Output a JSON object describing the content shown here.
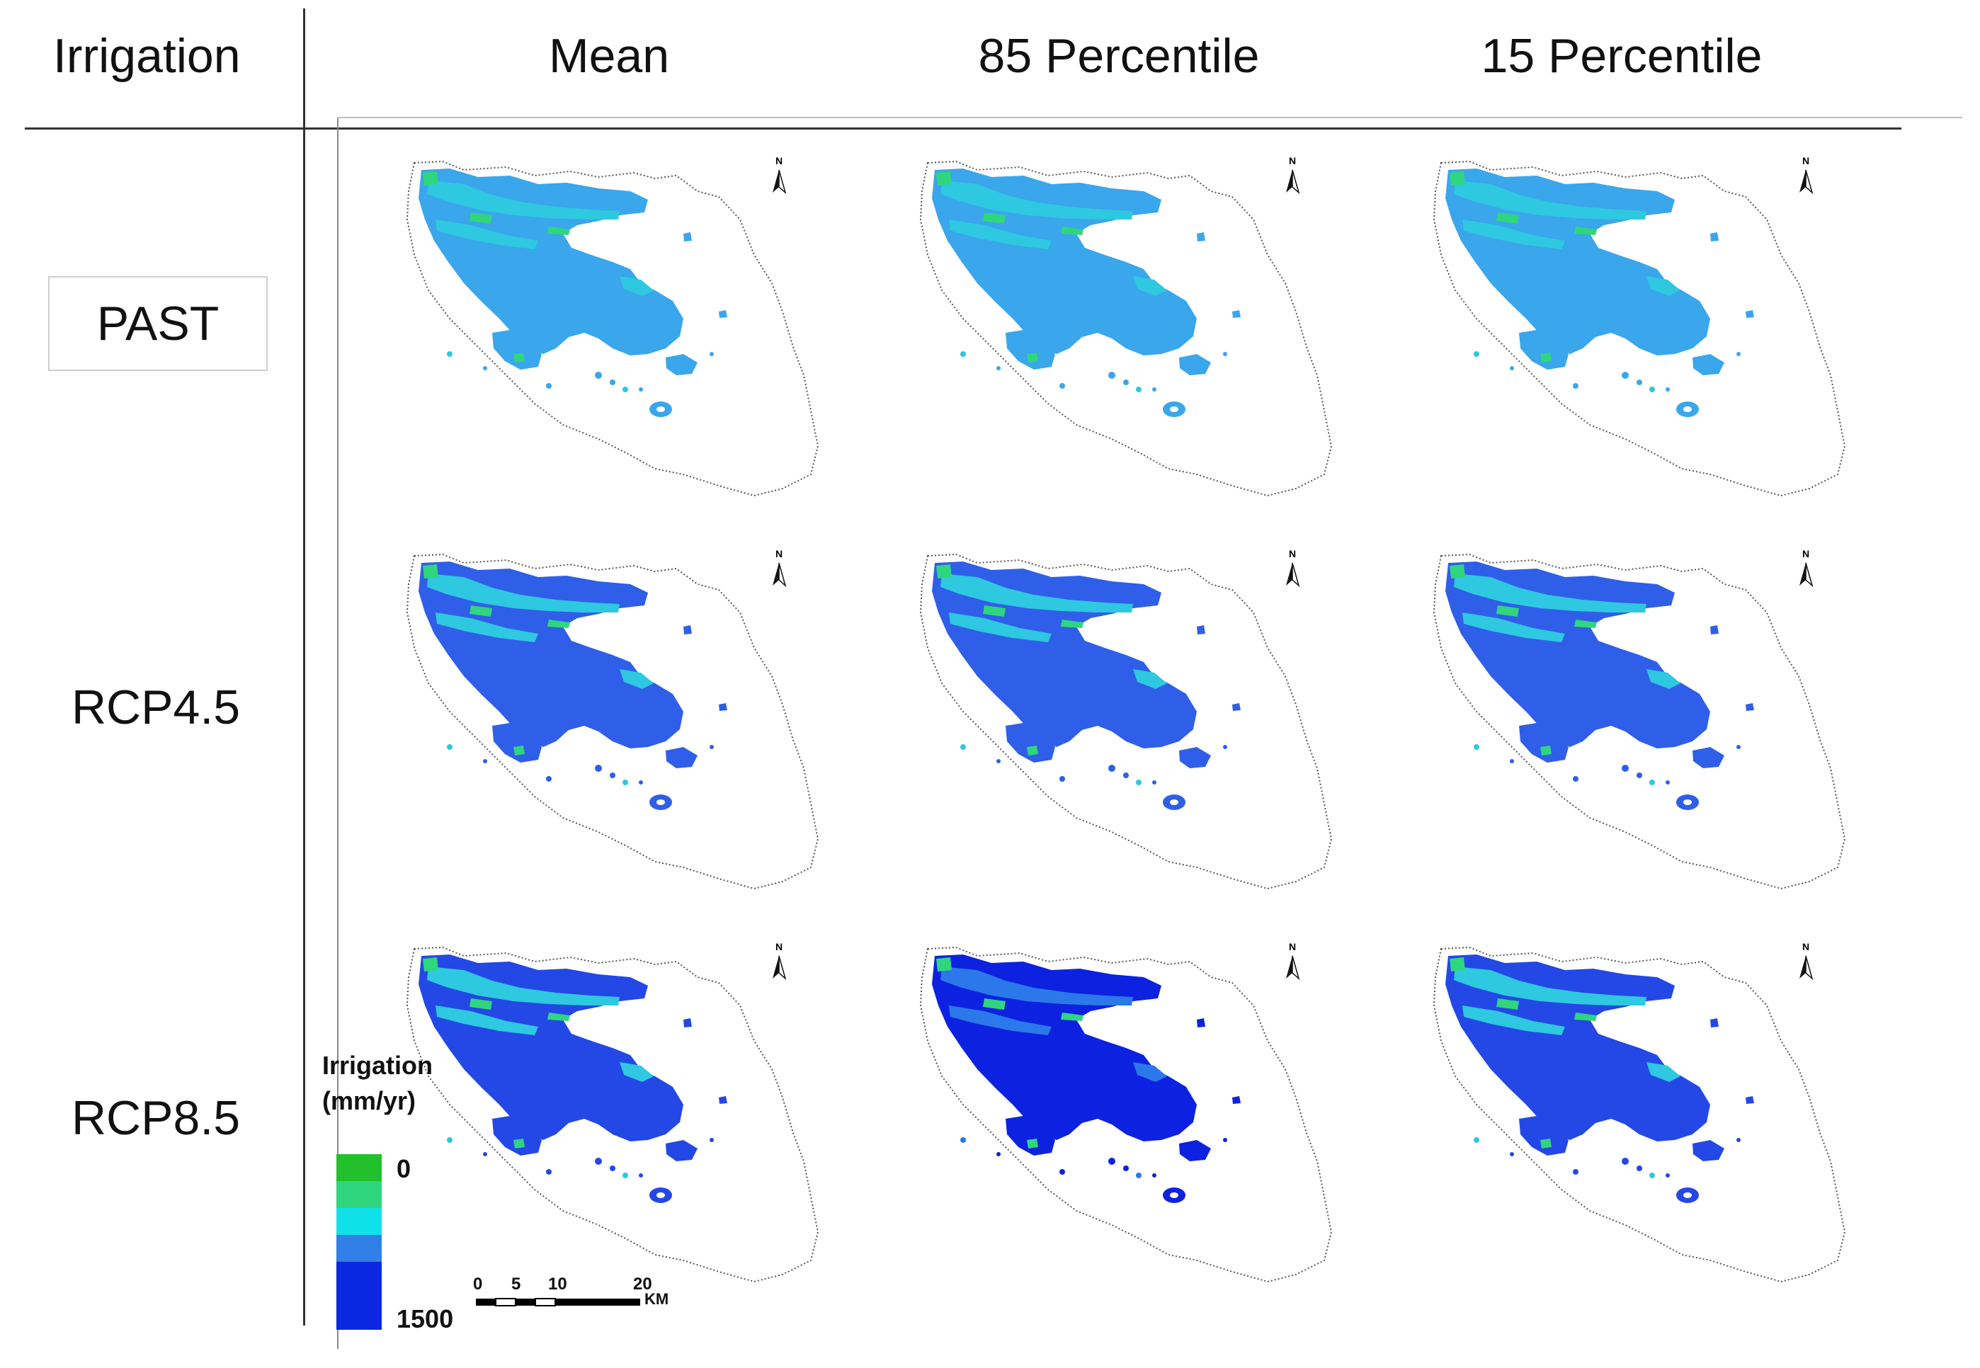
{
  "header": {
    "corner": "Irrigation",
    "columns": [
      "Mean",
      "85 Percentile",
      "15 Percentile"
    ]
  },
  "rows": [
    "PAST",
    "RCP4.5",
    "RCP8.5"
  ],
  "north_label": "N",
  "legend": {
    "title_line1": "Irrigation",
    "title_line2": "(mm/yr)",
    "min_label": "0",
    "max_label": "1500",
    "colors": [
      "#22c02a",
      "#2fd67e",
      "#10e0e8",
      "#3080e8",
      "#0a28e0"
    ]
  },
  "scalebar": {
    "ticks": [
      "0",
      "5",
      "10",
      "20"
    ],
    "unit": "KM"
  },
  "map_colors": {
    "past": {
      "main": "#3aa6ec",
      "alt": "#2ec8e0",
      "accent": "#2fd67e"
    },
    "rcp45": {
      "main": "#2f5fe8",
      "alt": "#2ec8e0",
      "accent": "#2fd67e"
    },
    "rcp85": {
      "main": "#2448e6",
      "alt": "#2ec8e0",
      "accent": "#2fd67e"
    },
    "rcp85_p85": {
      "main": "#0c22e0",
      "alt": "#2b78ea",
      "accent": "#2fd67e"
    }
  }
}
